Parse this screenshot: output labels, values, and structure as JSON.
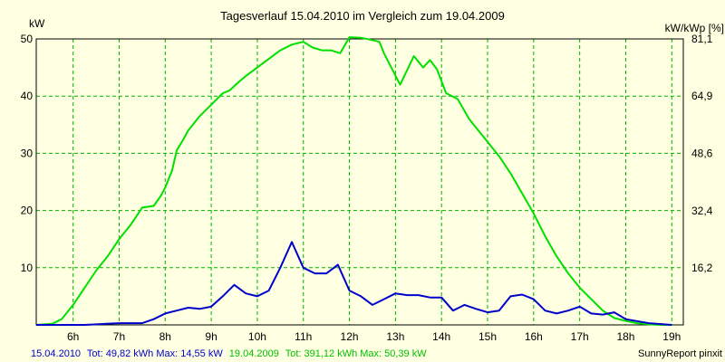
{
  "chart_data": {
    "type": "line",
    "title": "Tagesverlauf 15.04.2010 im Vergleich zum 19.04.2009",
    "ylabel": "kW",
    "y2label": "kW/kWp [%]",
    "ylim": [
      0,
      50
    ],
    "y2lim": [
      0,
      81.1
    ],
    "xlim": [
      5.2,
      19.25
    ],
    "yticks": [
      10,
      20,
      30,
      40,
      50
    ],
    "yticklabels": [
      "10",
      "20",
      "30",
      "40",
      "50"
    ],
    "y2ticks": [
      16.2,
      32.4,
      48.6,
      64.9,
      81.1
    ],
    "y2ticklabels": [
      "16,2",
      "32,4",
      "48,6",
      "64,9",
      "81,1"
    ],
    "xticks": [
      6,
      7,
      8,
      9,
      10,
      11,
      12,
      13,
      14,
      15,
      16,
      17,
      18,
      19
    ],
    "xticklabels": [
      "6h",
      "7h",
      "8h",
      "9h",
      "10h",
      "11h",
      "12h",
      "13h",
      "14h",
      "15h",
      "16h",
      "17h",
      "18h",
      "19h"
    ],
    "grid": true,
    "series": [
      {
        "name": "19.04.2009",
        "color": "#00e000",
        "x": [
          5.2,
          5.55,
          5.75,
          6.0,
          6.25,
          6.5,
          6.75,
          7.0,
          7.25,
          7.5,
          7.75,
          7.9,
          8.0,
          8.15,
          8.25,
          8.4,
          8.5,
          8.75,
          9.0,
          9.25,
          9.4,
          9.6,
          9.75,
          10.0,
          10.25,
          10.5,
          10.75,
          11.0,
          11.2,
          11.4,
          11.6,
          11.8,
          12.0,
          12.25,
          12.5,
          12.65,
          12.75,
          13.1,
          13.4,
          13.6,
          13.75,
          13.9,
          14.1,
          14.35,
          14.6,
          14.75,
          15.0,
          15.25,
          15.5,
          15.75,
          16.0,
          16.25,
          16.5,
          16.75,
          17.0,
          17.25,
          17.5,
          17.75,
          18.0,
          18.25,
          18.5,
          18.75,
          19.0
        ],
        "values": [
          0,
          0.2,
          1,
          3.5,
          6.5,
          9.5,
          12,
          15,
          17.5,
          20.5,
          20.8,
          22.5,
          24,
          27,
          30.5,
          32.5,
          34,
          36.5,
          38.5,
          40.5,
          41,
          42.5,
          43.5,
          45,
          46.5,
          48,
          49,
          49.5,
          48.5,
          48,
          48,
          47.5,
          50.3,
          50.2,
          49.8,
          49.5,
          47.5,
          42,
          47,
          45,
          46.3,
          44.7,
          40.5,
          39.5,
          36,
          34.5,
          32,
          29.5,
          26.5,
          23,
          19.5,
          15.5,
          12,
          9,
          6.5,
          4.5,
          2.5,
          1.2,
          0.7,
          0.3,
          0.1,
          0,
          0
        ]
      },
      {
        "name": "15.04.2010",
        "color": "#0000cc",
        "x": [
          5.2,
          6.25,
          6.5,
          7.0,
          7.25,
          7.5,
          7.75,
          8.0,
          8.25,
          8.5,
          8.75,
          9.0,
          9.25,
          9.5,
          9.75,
          10.0,
          10.25,
          10.5,
          10.75,
          11.0,
          11.25,
          11.5,
          11.75,
          12.0,
          12.25,
          12.5,
          12.75,
          13.0,
          13.25,
          13.5,
          13.75,
          14.0,
          14.25,
          14.5,
          14.75,
          15.0,
          15.25,
          15.5,
          15.75,
          16.0,
          16.25,
          16.5,
          16.75,
          17.0,
          17.25,
          17.5,
          17.75,
          18.0,
          18.5,
          19.0
        ],
        "values": [
          0,
          0,
          0.1,
          0.3,
          0.3,
          0.3,
          1,
          2,
          2.5,
          3,
          2.8,
          3.2,
          5,
          7,
          5.5,
          5,
          6,
          10,
          14.5,
          10,
          9,
          9,
          10.5,
          6,
          5,
          3.5,
          4.5,
          5.5,
          5.2,
          5.2,
          4.8,
          4.8,
          2.5,
          3.5,
          2.8,
          2.2,
          2.5,
          5,
          5.3,
          4.5,
          2.5,
          2,
          2.5,
          3.2,
          2,
          1.8,
          2.2,
          1,
          0.3,
          0
        ]
      }
    ],
    "footer": {
      "s2010_label": "15.04.2010",
      "s2010_stats": "Tot: 49,82 kWh Max: 14,55 kW",
      "s2009_label": "19.04.2009",
      "s2009_stats": "Tot: 391,12 kWh Max: 50,39 kW",
      "credit": "SunnyReport pinxit"
    }
  }
}
